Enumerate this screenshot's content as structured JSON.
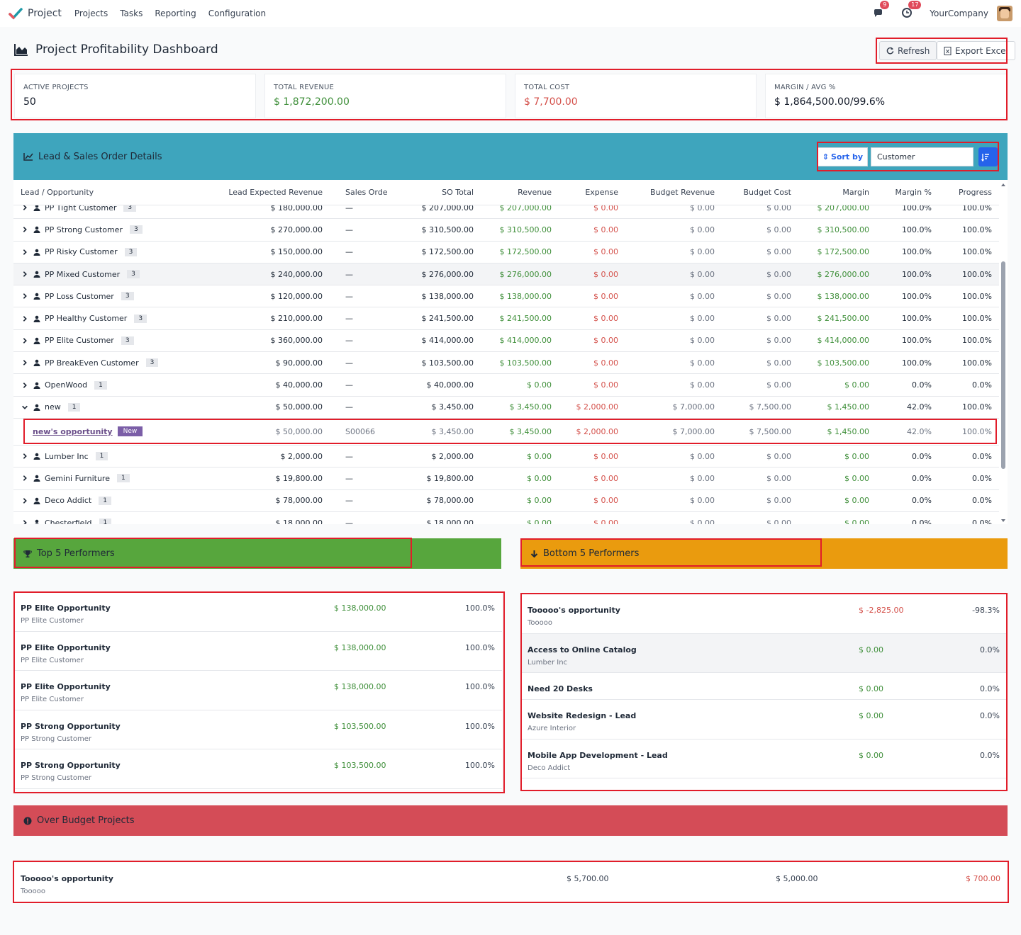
{
  "topbar": {
    "app": "Project",
    "nav": [
      "Projects",
      "Tasks",
      "Reporting",
      "Configuration"
    ],
    "messages_count": "9",
    "activity_count": "17",
    "company": "YourCompany"
  },
  "page": {
    "title": "Project Profitability Dashboard",
    "refresh_label": "Refresh",
    "export_label": "Export Excel"
  },
  "kpis": [
    {
      "label": "ACTIVE PROJECTS",
      "value": "50"
    },
    {
      "label": "TOTAL REVENUE",
      "value": "$ 1,872,200.00"
    },
    {
      "label": "TOTAL COST",
      "value": "$ 7,700.00"
    },
    {
      "label": "MARGIN / AVG %",
      "value": "$ 1,864,500.00/99.6%"
    }
  ],
  "lead_section": {
    "title": "Lead & Sales Order Details",
    "sort_label": "Sort by",
    "sort_value": "Customer"
  },
  "table": {
    "headers": [
      "Lead / Opportunity",
      "Lead Expected Revenue",
      "Sales Order",
      "SO Total",
      "Revenue",
      "Expense",
      "Budget Revenue",
      "Budget Cost",
      "Margin",
      "Margin %",
      "Progress"
    ],
    "rows": [
      {
        "name": "PP Tight Customer",
        "count": "3",
        "expected": "$ 180,000.00",
        "so": "—",
        "so_total": "$ 207,000.00",
        "revenue": "$ 207,000.00",
        "expense": "$ 0.00",
        "budget_rev": "$ 0.00",
        "budget_cost": "$ 0.00",
        "margin": "$ 207,000.00",
        "margin_pct": "100.0%",
        "progress": "100.0%"
      },
      {
        "name": "PP Strong Customer",
        "count": "3",
        "expected": "$ 270,000.00",
        "so": "—",
        "so_total": "$ 310,500.00",
        "revenue": "$ 310,500.00",
        "expense": "$ 0.00",
        "budget_rev": "$ 0.00",
        "budget_cost": "$ 0.00",
        "margin": "$ 310,500.00",
        "margin_pct": "100.0%",
        "progress": "100.0%"
      },
      {
        "name": "PP Risky Customer",
        "count": "3",
        "expected": "$ 150,000.00",
        "so": "—",
        "so_total": "$ 172,500.00",
        "revenue": "$ 172,500.00",
        "expense": "$ 0.00",
        "budget_rev": "$ 0.00",
        "budget_cost": "$ 0.00",
        "margin": "$ 172,500.00",
        "margin_pct": "100.0%",
        "progress": "100.0%"
      },
      {
        "name": "PP Mixed Customer",
        "count": "3",
        "expected": "$ 240,000.00",
        "so": "—",
        "so_total": "$ 276,000.00",
        "revenue": "$ 276,000.00",
        "expense": "$ 0.00",
        "budget_rev": "$ 0.00",
        "budget_cost": "$ 0.00",
        "margin": "$ 276,000.00",
        "margin_pct": "100.0%",
        "progress": "100.0%"
      },
      {
        "name": "PP Loss Customer",
        "count": "3",
        "expected": "$ 120,000.00",
        "so": "—",
        "so_total": "$ 138,000.00",
        "revenue": "$ 138,000.00",
        "expense": "$ 0.00",
        "budget_rev": "$ 0.00",
        "budget_cost": "$ 0.00",
        "margin": "$ 138,000.00",
        "margin_pct": "100.0%",
        "progress": "100.0%"
      },
      {
        "name": "PP Healthy Customer",
        "count": "3",
        "expected": "$ 210,000.00",
        "so": "—",
        "so_total": "$ 241,500.00",
        "revenue": "$ 241,500.00",
        "expense": "$ 0.00",
        "budget_rev": "$ 0.00",
        "budget_cost": "$ 0.00",
        "margin": "$ 241,500.00",
        "margin_pct": "100.0%",
        "progress": "100.0%"
      },
      {
        "name": "PP Elite Customer",
        "count": "3",
        "expected": "$ 360,000.00",
        "so": "—",
        "so_total": "$ 414,000.00",
        "revenue": "$ 414,000.00",
        "expense": "$ 0.00",
        "budget_rev": "$ 0.00",
        "budget_cost": "$ 0.00",
        "margin": "$ 414,000.00",
        "margin_pct": "100.0%",
        "progress": "100.0%"
      },
      {
        "name": "PP BreakEven Customer",
        "count": "3",
        "expected": "$ 90,000.00",
        "so": "—",
        "so_total": "$ 103,500.00",
        "revenue": "$ 103,500.00",
        "expense": "$ 0.00",
        "budget_rev": "$ 0.00",
        "budget_cost": "$ 0.00",
        "margin": "$ 103,500.00",
        "margin_pct": "100.0%",
        "progress": "100.0%"
      },
      {
        "name": "OpenWood",
        "count": "1",
        "expected": "$ 40,000.00",
        "so": "—",
        "so_total": "$ 40,000.00",
        "revenue": "$ 0.00",
        "expense": "$ 0.00",
        "budget_rev": "$ 0.00",
        "budget_cost": "$ 0.00",
        "margin": "$ 0.00",
        "margin_pct": "0.0%",
        "progress": "0.0%"
      },
      {
        "name": "new",
        "count": "1",
        "expanded": true,
        "expected": "$ 50,000.00",
        "so": "—",
        "so_total": "$ 3,450.00",
        "revenue": "$ 3,450.00",
        "expense": "$ 2,000.00",
        "budget_rev": "$ 7,000.00",
        "budget_cost": "$ 7,500.00",
        "margin": "$ 1,450.00",
        "margin_pct": "42.0%",
        "progress": "100.0%"
      }
    ],
    "child": {
      "name": "new's opportunity",
      "tag": "New",
      "expected": "$ 50,000.00",
      "so": "S00066",
      "so_total": "$ 3,450.00",
      "revenue": "$ 3,450.00",
      "expense": "$ 2,000.00",
      "budget_rev": "$ 7,000.00",
      "budget_cost": "$ 7,500.00",
      "margin": "$ 1,450.00",
      "margin_pct": "42.0%",
      "progress": "100.0%"
    },
    "rows_after": [
      {
        "name": "Lumber Inc",
        "count": "1",
        "expected": "$ 2,000.00",
        "so": "—",
        "so_total": "$ 2,000.00",
        "revenue": "$ 0.00",
        "expense": "$ 0.00",
        "budget_rev": "$ 0.00",
        "budget_cost": "$ 0.00",
        "margin": "$ 0.00",
        "margin_pct": "0.0%",
        "progress": "0.0%"
      },
      {
        "name": "Gemini Furniture",
        "count": "1",
        "expected": "$ 19,800.00",
        "so": "—",
        "so_total": "$ 19,800.00",
        "revenue": "$ 0.00",
        "expense": "$ 0.00",
        "budget_rev": "$ 0.00",
        "budget_cost": "$ 0.00",
        "margin": "$ 0.00",
        "margin_pct": "0.0%",
        "progress": "0.0%"
      },
      {
        "name": "Deco Addict",
        "count": "1",
        "expected": "$ 78,000.00",
        "so": "—",
        "so_total": "$ 78,000.00",
        "revenue": "$ 0.00",
        "expense": "$ 0.00",
        "budget_rev": "$ 0.00",
        "budget_cost": "$ 0.00",
        "margin": "$ 0.00",
        "margin_pct": "0.0%",
        "progress": "0.0%"
      },
      {
        "name": "Chesterfield",
        "count": "1",
        "expected": "$ 18,000.00",
        "so": "—",
        "so_total": "$ 18,000.00",
        "revenue": "$ 0.00",
        "expense": "$ 0.00",
        "budget_rev": "$ 0.00",
        "budget_cost": "$ 0.00",
        "margin": "$ 0.00",
        "margin_pct": "0.0%",
        "progress": "0.0%"
      }
    ]
  },
  "top5": {
    "title": "Top 5 Performers",
    "items": [
      {
        "name": "PP Elite Opportunity",
        "customer": "PP Elite Customer",
        "amount": "$ 138,000.00",
        "pct": "100.0%"
      },
      {
        "name": "PP Elite Opportunity",
        "customer": "PP Elite Customer",
        "amount": "$ 138,000.00",
        "pct": "100.0%"
      },
      {
        "name": "PP Elite Opportunity",
        "customer": "PP Elite Customer",
        "amount": "$ 138,000.00",
        "pct": "100.0%"
      },
      {
        "name": "PP Strong Opportunity",
        "customer": "PP Strong Customer",
        "amount": "$ 103,500.00",
        "pct": "100.0%"
      },
      {
        "name": "PP Strong Opportunity",
        "customer": "PP Strong Customer",
        "amount": "$ 103,500.00",
        "pct": "100.0%"
      }
    ]
  },
  "bottom5": {
    "title": "Bottom 5 Performers",
    "items": [
      {
        "name": "Tooooo's opportunity",
        "customer": "Tooooo",
        "amount": "$ -2,825.00",
        "pct": "-98.3%",
        "neg": true
      },
      {
        "name": "Access to Online Catalog",
        "customer": "Lumber Inc",
        "amount": "$ 0.00",
        "pct": "0.0%"
      },
      {
        "name": "Need 20 Desks",
        "customer": "",
        "amount": "$ 0.00",
        "pct": "0.0%"
      },
      {
        "name": "Website Redesign - Lead",
        "customer": "Azure Interior",
        "amount": "$ 0.00",
        "pct": "0.0%"
      },
      {
        "name": "Mobile App Development - Lead",
        "customer": "Deco Addict",
        "amount": "$ 0.00",
        "pct": "0.0%"
      }
    ]
  },
  "over_budget": {
    "title": "Over Budget Projects",
    "items": [
      {
        "name": "Tooooo's opportunity",
        "customer": "Tooooo",
        "actual": "$ 5,700.00",
        "budget": "$ 5,000.00",
        "over": "$ 700.00"
      }
    ]
  },
  "colors": {
    "teal": "#3ea5bd",
    "green": "#57a63d",
    "orange": "#ea9b0e",
    "red": "#d44c57",
    "highlight": "#e11d2a"
  }
}
